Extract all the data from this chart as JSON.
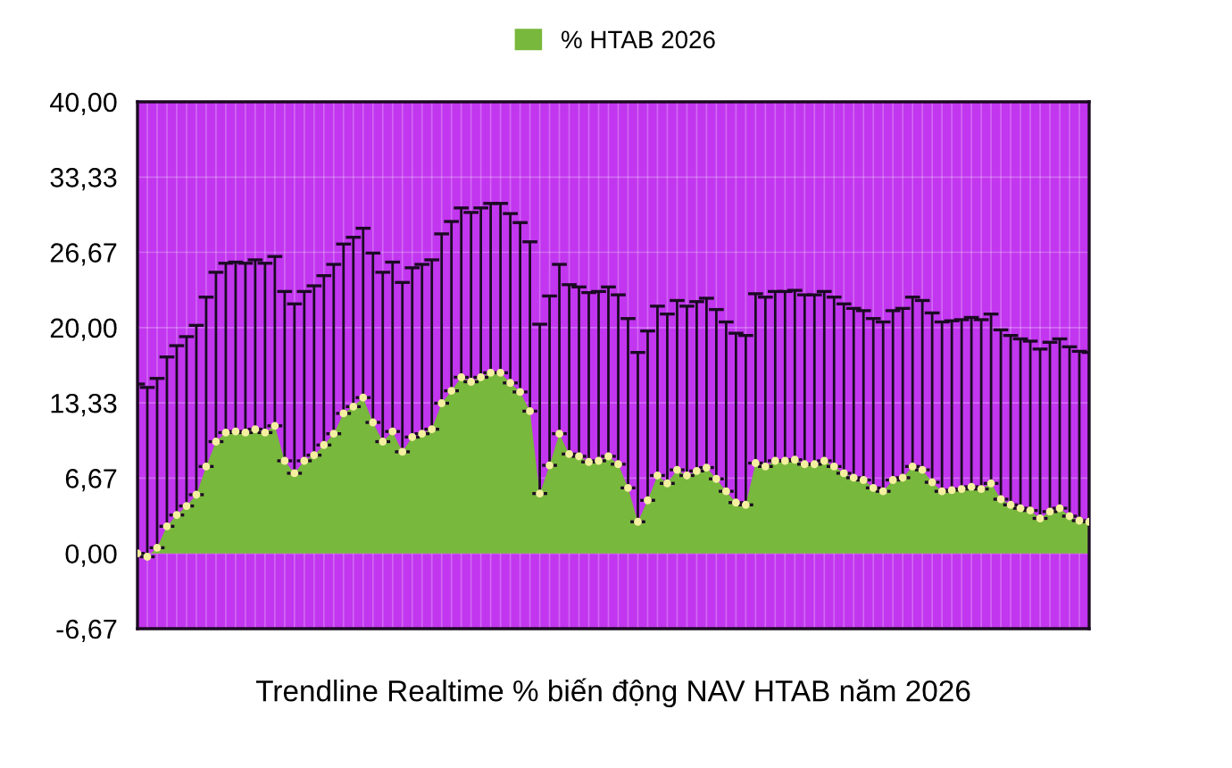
{
  "chart_data": {
    "type": "area",
    "xlabel": "Trendline Realtime % biến động NAV HTAB năm 2026",
    "categories": [
      null,
      null,
      null,
      null,
      null,
      null,
      null,
      null,
      null,
      null,
      null,
      null,
      null,
      null,
      null,
      null,
      null,
      null,
      null,
      null,
      null,
      null,
      null,
      null,
      null,
      null,
      null,
      null,
      null,
      null,
      null,
      null,
      null,
      null,
      null,
      null,
      null,
      null,
      null,
      null,
      null,
      null,
      null,
      null,
      null,
      null,
      null,
      null,
      null,
      null,
      null,
      null,
      null,
      null,
      null,
      null,
      null,
      null,
      null,
      null,
      null,
      null,
      null,
      null,
      null,
      null,
      null,
      null,
      null,
      null,
      null,
      null,
      null,
      null,
      null,
      null,
      null,
      null,
      null,
      null,
      null,
      null,
      null,
      null,
      null,
      null,
      null,
      null,
      null,
      null,
      null,
      null,
      null,
      null,
      null,
      null,
      null,
      null
    ],
    "series": [
      {
        "name": "% HTAB 2026",
        "color": "#78b83c",
        "values": [
          0,
          -0.3,
          0.5,
          2.4,
          3.4,
          4.2,
          5.2,
          7.7,
          9.9,
          10.7,
          10.8,
          10.7,
          11.0,
          10.7,
          11.3,
          8.2,
          7.1,
          8.2,
          8.7,
          9.6,
          10.6,
          12.4,
          13.0,
          13.8,
          11.6,
          9.9,
          10.8,
          9.0,
          10.3,
          10.6,
          11.0,
          13.3,
          14.4,
          15.6,
          15.2,
          15.6,
          16.0,
          16.0,
          15.1,
          14.3,
          12.6,
          5.3,
          7.8,
          10.6,
          8.8,
          8.6,
          8.1,
          8.2,
          8.6,
          7.9,
          5.8,
          2.8,
          4.7,
          6.9,
          6.2,
          7.4,
          6.9,
          7.3,
          7.6,
          6.6,
          5.5,
          4.5,
          4.3,
          8.0,
          7.7,
          8.2,
          8.2,
          8.3,
          7.9,
          7.9,
          8.2,
          7.7,
          7.1,
          6.7,
          6.5,
          5.8,
          5.5,
          6.5,
          6.7,
          7.7,
          7.4,
          6.3,
          5.5,
          5.6,
          5.7,
          5.9,
          5.7,
          6.2,
          4.8,
          4.3,
          4.0,
          3.8,
          3.1,
          3.7,
          4.0,
          3.3,
          2.9,
          2.8
        ],
        "errors": [
          [
            0,
            15
          ],
          [
            -0.3,
            14.7
          ],
          [
            0.5,
            15.5
          ],
          [
            2.4,
            17.4
          ],
          [
            3.4,
            18.4
          ],
          [
            4.2,
            19.2
          ],
          [
            5.2,
            20.2
          ],
          [
            7.7,
            22.7
          ],
          [
            9.9,
            24.9
          ],
          [
            10.7,
            25.7
          ],
          [
            10.8,
            25.8
          ],
          [
            10.7,
            25.7
          ],
          [
            11.0,
            26.0
          ],
          [
            10.7,
            25.7
          ],
          [
            11.3,
            26.3
          ],
          [
            8.2,
            23.2
          ],
          [
            7.1,
            22.1
          ],
          [
            8.2,
            23.2
          ],
          [
            8.7,
            23.7
          ],
          [
            9.6,
            24.6
          ],
          [
            10.6,
            25.6
          ],
          [
            12.4,
            27.4
          ],
          [
            13.0,
            28.0
          ],
          [
            13.8,
            28.8
          ],
          [
            11.6,
            26.6
          ],
          [
            9.9,
            24.9
          ],
          [
            10.8,
            25.8
          ],
          [
            9.0,
            24.0
          ],
          [
            10.3,
            25.3
          ],
          [
            10.6,
            25.6
          ],
          [
            11.0,
            26.0
          ],
          [
            13.3,
            28.3
          ],
          [
            14.4,
            29.4
          ],
          [
            15.6,
            30.6
          ],
          [
            15.2,
            30.2
          ],
          [
            15.6,
            30.6
          ],
          [
            16.0,
            31.0
          ],
          [
            16.0,
            31.0
          ],
          [
            15.1,
            30.1
          ],
          [
            14.3,
            29.3
          ],
          [
            12.6,
            27.6
          ],
          [
            5.3,
            20.3
          ],
          [
            7.8,
            22.8
          ],
          [
            10.6,
            25.6
          ],
          [
            8.8,
            23.8
          ],
          [
            8.6,
            23.6
          ],
          [
            8.1,
            23.1
          ],
          [
            8.2,
            23.2
          ],
          [
            8.6,
            23.6
          ],
          [
            7.9,
            22.9
          ],
          [
            5.8,
            20.8
          ],
          [
            2.8,
            17.8
          ],
          [
            4.7,
            19.7
          ],
          [
            6.9,
            21.9
          ],
          [
            6.2,
            21.2
          ],
          [
            7.4,
            22.4
          ],
          [
            6.9,
            21.9
          ],
          [
            7.3,
            22.3
          ],
          [
            7.6,
            22.6
          ],
          [
            6.6,
            21.6
          ],
          [
            5.5,
            20.5
          ],
          [
            4.5,
            19.5
          ],
          [
            4.3,
            19.3
          ],
          [
            8.0,
            23.0
          ],
          [
            7.7,
            22.7
          ],
          [
            8.2,
            23.2
          ],
          [
            8.2,
            23.2
          ],
          [
            8.3,
            23.3
          ],
          [
            7.9,
            22.9
          ],
          [
            7.9,
            22.9
          ],
          [
            8.2,
            23.2
          ],
          [
            7.7,
            22.7
          ],
          [
            7.1,
            22.1
          ],
          [
            6.7,
            21.7
          ],
          [
            6.5,
            21.5
          ],
          [
            5.8,
            20.8
          ],
          [
            5.5,
            20.5
          ],
          [
            6.5,
            21.5
          ],
          [
            6.7,
            21.7
          ],
          [
            7.7,
            22.7
          ],
          [
            7.4,
            22.4
          ],
          [
            6.3,
            21.3
          ],
          [
            5.5,
            20.5
          ],
          [
            5.6,
            20.6
          ],
          [
            5.7,
            20.7
          ],
          [
            5.9,
            20.9
          ],
          [
            5.7,
            20.7
          ],
          [
            6.2,
            21.2
          ],
          [
            4.8,
            19.8
          ],
          [
            4.3,
            19.3
          ],
          [
            4.0,
            19.0
          ],
          [
            3.8,
            18.8
          ],
          [
            3.1,
            18.1
          ],
          [
            3.7,
            18.7
          ],
          [
            4.0,
            19.0
          ],
          [
            3.3,
            18.3
          ],
          [
            2.9,
            17.9
          ],
          [
            2.8,
            17.8
          ]
        ]
      }
    ],
    "ylim": [
      -6.67,
      40
    ],
    "yticks": [
      {
        "value": -6.67,
        "label": "-6,67"
      },
      {
        "value": 0,
        "label": "0,00"
      },
      {
        "value": 6.67,
        "label": "6,67"
      },
      {
        "value": 13.33,
        "label": "13,33"
      },
      {
        "value": 20,
        "label": "20,00"
      },
      {
        "value": 26.67,
        "label": "26,67"
      },
      {
        "value": 33.33,
        "label": "33,33"
      },
      {
        "value": 40,
        "label": "40,00"
      }
    ],
    "tick_labels": "y",
    "grid": true,
    "legend": "top",
    "marker": "circle"
  }
}
